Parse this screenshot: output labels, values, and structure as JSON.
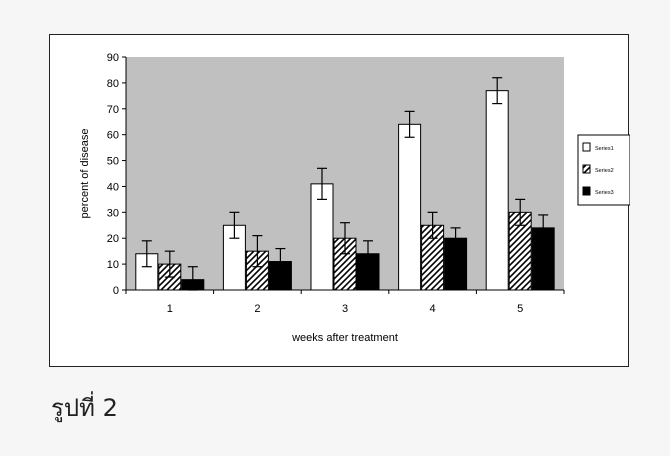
{
  "caption": "รูปที่ 2",
  "chart_data": {
    "type": "bar",
    "title": "",
    "xlabel": "weeks after treatment",
    "ylabel": "percent of disease",
    "ylim": [
      0,
      90
    ],
    "yticks": [
      "0",
      "10",
      "20",
      "30",
      "40",
      "50",
      "60",
      "70",
      "80",
      "90"
    ],
    "categories": [
      "1",
      "2",
      "3",
      "4",
      "5"
    ],
    "series": [
      {
        "name": "Series1",
        "pattern": "white",
        "values": [
          14,
          25,
          41,
          64,
          77
        ],
        "errors": [
          5,
          5,
          6,
          5,
          5
        ]
      },
      {
        "name": "Series2",
        "pattern": "hatched",
        "values": [
          10,
          15,
          20,
          25,
          30
        ],
        "errors": [
          5,
          6,
          6,
          5,
          5
        ]
      },
      {
        "name": "Series3",
        "pattern": "black",
        "values": [
          4,
          11,
          14,
          20,
          24
        ],
        "errors": [
          5,
          5,
          5,
          4,
          5
        ]
      }
    ],
    "grid": false,
    "legend_position": "right",
    "colors": {
      "plot_area": "#c0c0c0",
      "bar_fill_white": "#ffffff",
      "bar_fill_black": "#000000",
      "bar_stroke": "#000000"
    }
  }
}
